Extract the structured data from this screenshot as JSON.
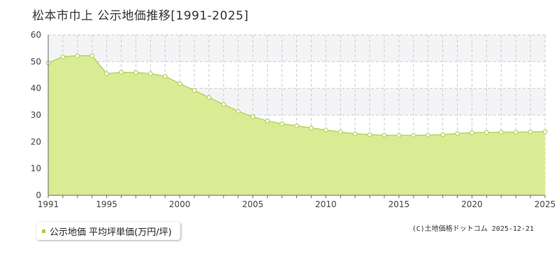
{
  "chart_data": {
    "type": "area",
    "title": "松本市巾上 公示地価推移[1991-2025]",
    "x": [
      1991,
      1992,
      1993,
      1994,
      1995,
      1996,
      1997,
      1998,
      1999,
      2000,
      2001,
      2002,
      2003,
      2004,
      2005,
      2006,
      2007,
      2008,
      2009,
      2010,
      2011,
      2012,
      2013,
      2014,
      2015,
      2016,
      2017,
      2018,
      2019,
      2020,
      2021,
      2022,
      2023,
      2024,
      2025
    ],
    "series": [
      {
        "name": "公示地価 平均坪単価(万円/坪)",
        "values": [
          49.5,
          51.8,
          52.2,
          52.2,
          45.5,
          46.0,
          45.9,
          45.5,
          44.5,
          41.8,
          39.2,
          36.6,
          34.0,
          31.4,
          29.4,
          27.8,
          26.7,
          26.0,
          25.2,
          24.4,
          23.7,
          23.0,
          22.7,
          22.5,
          22.4,
          22.4,
          22.5,
          22.7,
          23.1,
          23.4,
          23.5,
          23.6,
          23.6,
          23.7,
          23.8
        ]
      }
    ],
    "xlabel": "",
    "ylabel": "",
    "xlim": [
      1991,
      2025
    ],
    "ylim": [
      0,
      60
    ],
    "yticks": [
      0,
      10,
      20,
      30,
      40,
      50,
      60
    ],
    "xticks": [
      1991,
      1995,
      2000,
      2005,
      2010,
      2015,
      2020,
      2025
    ],
    "grid": true,
    "legend_position": "bottom-left",
    "colors": {
      "fill": "#d9ec94",
      "line": "#b5d45c",
      "marker": "#ffffff",
      "grid": "#cccccc",
      "band": "#f4f4f6",
      "axis": "#666666"
    }
  },
  "legend_label": "公示地価 平均坪単価(万円/坪)",
  "legend_color": "#a6d13b",
  "copyright": "(C)土地価格ドットコム 2025-12-21"
}
